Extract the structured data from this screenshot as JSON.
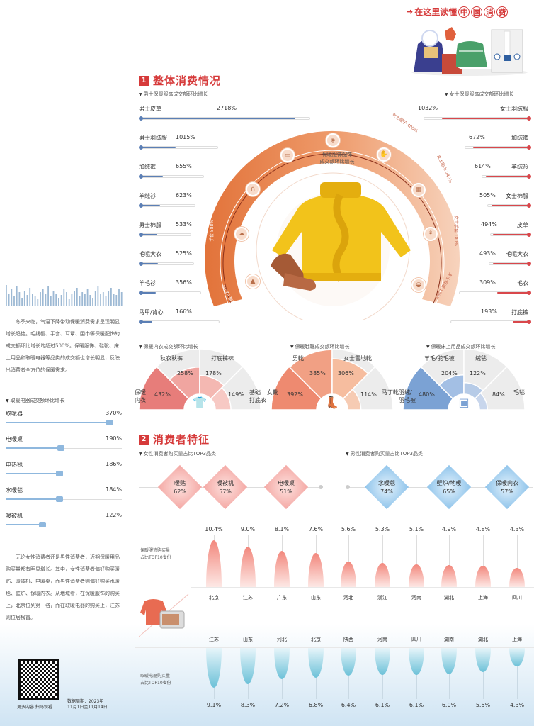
{
  "banner": {
    "title": "在这里读懂",
    "highlight": [
      "中",
      "国",
      "消",
      "费"
    ]
  },
  "section1": {
    "num": "1",
    "title": "整体消费情况"
  },
  "section2": {
    "num": "2",
    "title": "消费者特征"
  },
  "men_apparel": {
    "subtitle": "男士保暖服饰成交额环比增长",
    "color": "#5b7fb5",
    "items": [
      {
        "label": "男士皮草",
        "value": "2718%",
        "num": 2718
      },
      {
        "label": "男士羽绒服",
        "value": "1015%",
        "num": 1015
      },
      {
        "label": "加绒裤",
        "value": "655%",
        "num": 655
      },
      {
        "label": "羊绒衫",
        "value": "623%",
        "num": 623
      },
      {
        "label": "男士棉服",
        "value": "533%",
        "num": 533
      },
      {
        "label": "毛呢大衣",
        "value": "525%",
        "num": 525
      },
      {
        "label": "羊毛衫",
        "value": "356%",
        "num": 356
      },
      {
        "label": "马甲/背心",
        "value": "166%",
        "num": 166
      }
    ]
  },
  "women_apparel": {
    "subtitle": "女士保暖服饰成交额环比增长",
    "color": "#d9474b",
    "items": [
      {
        "label": "女士羽绒服",
        "value": "1032%",
        "num": 1032
      },
      {
        "label": "加绒裤",
        "value": "672%",
        "num": 672
      },
      {
        "label": "羊绒衫",
        "value": "614%",
        "num": 614
      },
      {
        "label": "女士棉服",
        "value": "505%",
        "num": 505
      },
      {
        "label": "皮草",
        "value": "494%",
        "num": 494
      },
      {
        "label": "毛呢大衣",
        "value": "493%",
        "num": 493
      },
      {
        "label": "毛衣",
        "value": "309%",
        "num": 309
      },
      {
        "label": "打底裤",
        "value": "193%",
        "num": 193
      }
    ]
  },
  "accessories_ring": {
    "center_title": "保暖服饰配饰\n成交额环比增长",
    "labels": [
      {
        "text": "围巾/手套/帽子套装\n555%"
      },
      {
        "text": "耳罩/耳包\n570%"
      },
      {
        "text": "手套\n588%"
      },
      {
        "text": "毛线帽\n620%"
      },
      {
        "text": "男士围巾\n457%"
      },
      {
        "text": "女士帽子\n400%"
      },
      {
        "text": "女士围巾\n240%"
      },
      {
        "text": "女士手套\n180%"
      },
      {
        "text": "女士耳罩\n136%"
      }
    ]
  },
  "underwear": {
    "subtitle": "保暖内衣成交额环比增长",
    "segments": [
      {
        "label": "保暖\n内衣",
        "value": "432%"
      },
      {
        "label": "秋衣秋裤",
        "value": "258%"
      },
      {
        "label": "打底裤袜",
        "value": "178%"
      },
      {
        "label": "基础\n打底衣",
        "value": "149%"
      }
    ]
  },
  "shoes": {
    "subtitle": "保暖鞋靴成交额环比增长",
    "segments": [
      {
        "label": "女靴",
        "value": "392%"
      },
      {
        "label": "男靴",
        "value": "385%"
      },
      {
        "label": "女士雪地靴",
        "value": "306%"
      },
      {
        "label": "马丁靴",
        "value": "114%"
      }
    ]
  },
  "bedding": {
    "subtitle": "保暖床上用品成交额环比增长",
    "segments": [
      {
        "label": "羽绒/\n羽毛被",
        "value": "480%"
      },
      {
        "label": "羊毛/驼毛被",
        "value": "204%"
      },
      {
        "label": "绒毯",
        "value": "122%"
      },
      {
        "label": "毛毯",
        "value": "84%"
      }
    ]
  },
  "intro_text": "冬季来临，气温下降带动保暖消费需求呈现明显增长趋势。毛线帽、手套、耳罩、围巾等保暖配饰的成交额环比增长均超过500%。保暖服饰、鞋靴、床上用品和取暖电器等品类的成交额也增长明显，反映出消费者全方位的保暖需求。",
  "heaters": {
    "subtitle": "取暖电器成交额环比增长",
    "items": [
      {
        "label": "取暖器",
        "value": "370%",
        "num": 370
      },
      {
        "label": "电暖桌",
        "value": "190%",
        "num": 190
      },
      {
        "label": "电热毯",
        "value": "186%",
        "num": 186
      },
      {
        "label": "水暖毯",
        "value": "184%",
        "num": 184
      },
      {
        "label": "暖被机",
        "value": "122%",
        "num": 122
      }
    ]
  },
  "consumer_text": "无论女性消费者还是男性消费者，近期保暖用品购买量都有明显增长。其中，女性消费者偏好购买暖贴、暖被机、电暖桌，而男性消费者则偏好购买水暖毯、壁炉、保暖内衣。从地域看，在保暖服饰的购买上，北京位列第一名，而在取暖电器的购买上，江苏则位居榜首。",
  "women_top3": {
    "subtitle": "女性消费者购买量占比TOP3品类",
    "items": [
      {
        "label": "暖贴",
        "value": "62%"
      },
      {
        "label": "暖被机",
        "value": "57%"
      },
      {
        "label": "电暖桌",
        "value": "51%"
      }
    ]
  },
  "men_top3": {
    "subtitle": "男性消费者购买量占比TOP3品类",
    "items": [
      {
        "label": "水暖毯",
        "value": "74%"
      },
      {
        "label": "壁炉/地暖",
        "value": "65%"
      },
      {
        "label": "保暖内衣",
        "value": "57%"
      }
    ]
  },
  "apparel_provinces": {
    "label": "保暖服饰购买量\n占比TOP10省份",
    "items": [
      {
        "prov": "北京",
        "value": "10.4%",
        "num": 10.4
      },
      {
        "prov": "江苏",
        "value": "9.0%",
        "num": 9.0
      },
      {
        "prov": "广东",
        "value": "8.1%",
        "num": 8.1
      },
      {
        "prov": "山东",
        "value": "7.6%",
        "num": 7.6
      },
      {
        "prov": "河北",
        "value": "5.6%",
        "num": 5.6
      },
      {
        "prov": "浙江",
        "value": "5.3%",
        "num": 5.3
      },
      {
        "prov": "河南",
        "value": "5.1%",
        "num": 5.1
      },
      {
        "prov": "湖北",
        "value": "4.9%",
        "num": 4.9
      },
      {
        "prov": "上海",
        "value": "4.8%",
        "num": 4.8
      },
      {
        "prov": "四川",
        "value": "4.3%",
        "num": 4.3
      }
    ]
  },
  "heater_provinces": {
    "label": "取暖电器购买量\n占比TOP10省份",
    "items": [
      {
        "prov": "江苏",
        "value": "9.1%",
        "num": 9.1
      },
      {
        "prov": "山东",
        "value": "8.3%",
        "num": 8.3
      },
      {
        "prov": "河北",
        "value": "7.2%",
        "num": 7.2
      },
      {
        "prov": "北京",
        "value": "6.8%",
        "num": 6.8
      },
      {
        "prov": "陕西",
        "value": "6.4%",
        "num": 6.4
      },
      {
        "prov": "河南",
        "value": "6.1%",
        "num": 6.1
      },
      {
        "prov": "四川",
        "value": "6.1%",
        "num": 6.1
      },
      {
        "prov": "湖南",
        "value": "6.0%",
        "num": 6.0
      },
      {
        "prov": "湖北",
        "value": "5.5%",
        "num": 5.5
      },
      {
        "prov": "上海",
        "value": "4.3%",
        "num": 4.3
      }
    ]
  },
  "footer": {
    "qr_caption": "更多内容 扫码观看",
    "period_line1": "数据周期：2023年",
    "period_line2": "11月1日至11月14日"
  },
  "chart_data": [
    {
      "type": "bar",
      "title": "男士保暖服饰成交额环比增长",
      "categories": [
        "男士皮草",
        "男士羽绒服",
        "加绒裤",
        "羊绒衫",
        "男士棉服",
        "毛呢大衣",
        "羊毛衫",
        "马甲/背心"
      ],
      "values": [
        2718,
        1015,
        655,
        623,
        533,
        525,
        356,
        166
      ],
      "ylabel": "%"
    },
    {
      "type": "bar",
      "title": "女士保暖服饰成交额环比增长",
      "categories": [
        "女士羽绒服",
        "加绒裤",
        "羊绒衫",
        "女士棉服",
        "皮草",
        "毛呢大衣",
        "毛衣",
        "打底裤"
      ],
      "values": [
        1032,
        672,
        614,
        505,
        494,
        493,
        309,
        193
      ],
      "ylabel": "%"
    },
    {
      "type": "pie",
      "title": "保暖内衣成交额环比增长",
      "categories": [
        "保暖内衣",
        "秋衣秋裤",
        "打底裤袜",
        "基础打底衣"
      ],
      "values": [
        432,
        258,
        178,
        149
      ]
    },
    {
      "type": "pie",
      "title": "保暖鞋靴成交额环比增长",
      "categories": [
        "女靴",
        "男靴",
        "女士雪地靴",
        "马丁靴"
      ],
      "values": [
        392,
        385,
        306,
        114
      ]
    },
    {
      "type": "pie",
      "title": "保暖床上用品成交额环比增长",
      "categories": [
        "羽绒/羽毛被",
        "羊毛/驼毛被",
        "绒毯",
        "毛毯"
      ],
      "values": [
        480,
        204,
        122,
        84
      ]
    },
    {
      "type": "bar",
      "title": "取暖电器成交额环比增长",
      "categories": [
        "取暖器",
        "电暖桌",
        "电热毯",
        "水暖毯",
        "暖被机"
      ],
      "values": [
        370,
        190,
        186,
        184,
        122
      ]
    },
    {
      "type": "bar",
      "title": "女性消费者购买量占比TOP3品类",
      "categories": [
        "暖贴",
        "暖被机",
        "电暖桌"
      ],
      "values": [
        62,
        57,
        51
      ]
    },
    {
      "type": "bar",
      "title": "男性消费者购买量占比TOP3品类",
      "categories": [
        "水暖毯",
        "壁炉/地暖",
        "保暖内衣"
      ],
      "values": [
        74,
        65,
        57
      ]
    },
    {
      "type": "bar",
      "title": "保暖服饰购买量占比TOP10省份",
      "categories": [
        "北京",
        "江苏",
        "广东",
        "山东",
        "河北",
        "浙江",
        "河南",
        "湖北",
        "上海",
        "四川"
      ],
      "values": [
        10.4,
        9.0,
        8.1,
        7.6,
        5.6,
        5.3,
        5.1,
        4.9,
        4.8,
        4.3
      ]
    },
    {
      "type": "bar",
      "title": "取暖电器购买量占比TOP10省份",
      "categories": [
        "江苏",
        "山东",
        "河北",
        "北京",
        "陕西",
        "河南",
        "四川",
        "湖南",
        "湖北",
        "上海"
      ],
      "values": [
        9.1,
        8.3,
        7.2,
        6.8,
        6.4,
        6.1,
        6.1,
        6.0,
        5.5,
        4.3
      ]
    }
  ]
}
